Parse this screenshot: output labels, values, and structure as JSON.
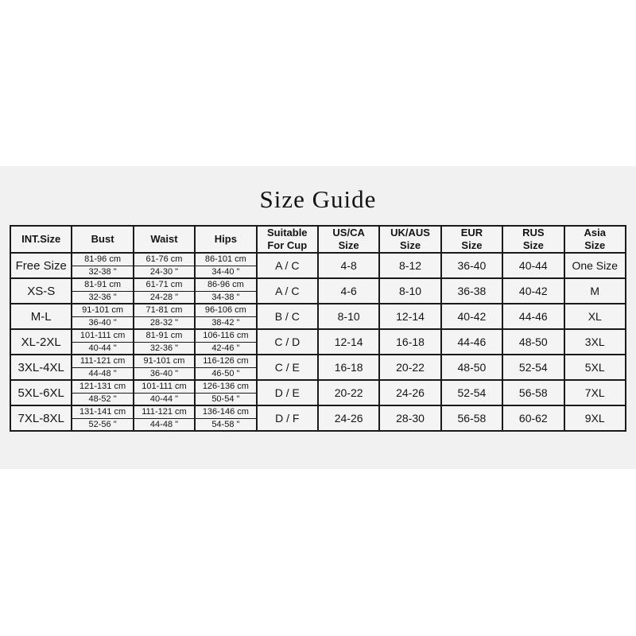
{
  "title": "Size Guide",
  "colors": {
    "page_bg": "#ffffff",
    "panel_bg": "#f1f1f2",
    "cell_bg": "#f4f4f5",
    "border": "#1a1a1a",
    "text": "#141414"
  },
  "table": {
    "headers": {
      "int_size": "INT.Size",
      "bust": "Bust",
      "waist": "Waist",
      "hips": "Hips",
      "cup": "Suitable\nFor Cup",
      "us_ca": "US/CA\nSize",
      "uk_aus": "UK/AUS\nSize",
      "eur": "EUR\nSize",
      "rus": "RUS\nSize",
      "asia": "Asia\nSize"
    },
    "rows": [
      {
        "int_size": "Free Size",
        "bust_cm": "81-96 cm",
        "bust_in": "32-38 \"",
        "waist_cm": "61-76 cm",
        "waist_in": "24-30 \"",
        "hips_cm": "86-101 cm",
        "hips_in": "34-40 \"",
        "cup": "A / C",
        "us_ca": "4-8",
        "uk_aus": "8-12",
        "eur": "36-40",
        "rus": "40-44",
        "asia": "One Size"
      },
      {
        "int_size": "XS-S",
        "bust_cm": "81-91 cm",
        "bust_in": "32-36 \"",
        "waist_cm": "61-71 cm",
        "waist_in": "24-28 \"",
        "hips_cm": "86-96 cm",
        "hips_in": "34-38 \"",
        "cup": "A / C",
        "us_ca": "4-6",
        "uk_aus": "8-10",
        "eur": "36-38",
        "rus": "40-42",
        "asia": "M"
      },
      {
        "int_size": "M-L",
        "bust_cm": "91-101 cm",
        "bust_in": "36-40 \"",
        "waist_cm": "71-81 cm",
        "waist_in": "28-32 \"",
        "hips_cm": "96-106 cm",
        "hips_in": "38-42 \"",
        "cup": "B / C",
        "us_ca": "8-10",
        "uk_aus": "12-14",
        "eur": "40-42",
        "rus": "44-46",
        "asia": "XL"
      },
      {
        "int_size": "XL-2XL",
        "bust_cm": "101-111 cm",
        "bust_in": "40-44 \"",
        "waist_cm": "81-91 cm",
        "waist_in": "32-36 \"",
        "hips_cm": "106-116 cm",
        "hips_in": "42-46 \"",
        "cup": "C / D",
        "us_ca": "12-14",
        "uk_aus": "16-18",
        "eur": "44-46",
        "rus": "48-50",
        "asia": "3XL"
      },
      {
        "int_size": "3XL-4XL",
        "bust_cm": "111-121 cm",
        "bust_in": "44-48 \"",
        "waist_cm": "91-101 cm",
        "waist_in": "36-40 \"",
        "hips_cm": "116-126 cm",
        "hips_in": "46-50 \"",
        "cup": "C / E",
        "us_ca": "16-18",
        "uk_aus": "20-22",
        "eur": "48-50",
        "rus": "52-54",
        "asia": "5XL"
      },
      {
        "int_size": "5XL-6XL",
        "bust_cm": "121-131 cm",
        "bust_in": "48-52 \"",
        "waist_cm": "101-111 cm",
        "waist_in": "40-44 \"",
        "hips_cm": "126-136 cm",
        "hips_in": "50-54 \"",
        "cup": "D / E",
        "us_ca": "20-22",
        "uk_aus": "24-26",
        "eur": "52-54",
        "rus": "56-58",
        "asia": "7XL"
      },
      {
        "int_size": "7XL-8XL",
        "bust_cm": "131-141 cm",
        "bust_in": "52-56 \"",
        "waist_cm": "111-121 cm",
        "waist_in": "44-48 \"",
        "hips_cm": "136-146 cm",
        "hips_in": "54-58 \"",
        "cup": "D / F",
        "us_ca": "24-26",
        "uk_aus": "28-30",
        "eur": "56-58",
        "rus": "60-62",
        "asia": "9XL"
      }
    ]
  }
}
